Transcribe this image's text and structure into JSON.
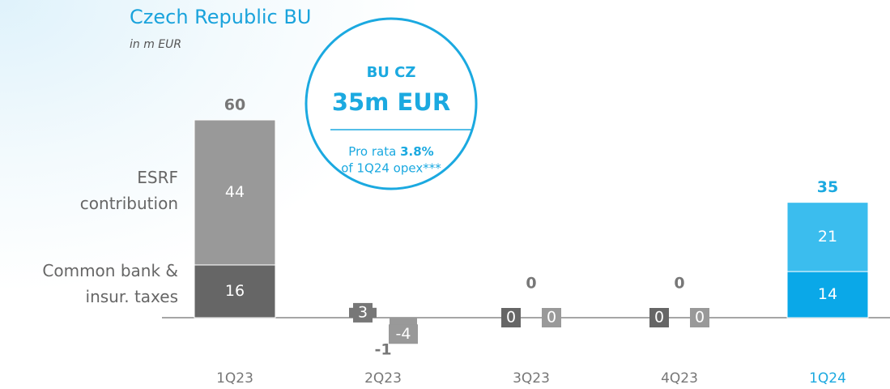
{
  "chart_data": {
    "type": "stacked_bar",
    "title": "Czech Republic BU",
    "subtitle": "in m EUR",
    "categories": [
      "1Q23",
      "2Q23",
      "3Q23",
      "4Q23",
      "1Q24"
    ],
    "category_colors": [
      "#777777",
      "#777777",
      "#777777",
      "#777777",
      "#1ba9e0"
    ],
    "series": [
      {
        "name": "Common bank & insur. taxes",
        "colors": [
          "#666666",
          "#777777",
          "#666666",
          "#666666",
          "#0aa8e8"
        ],
        "values": [
          16,
          3,
          0,
          0,
          14
        ]
      },
      {
        "name": "ESRF contribution",
        "colors": [
          "#999999",
          "#999999",
          "#999999",
          "#999999",
          "#3bbdee"
        ],
        "values": [
          44,
          -4,
          0,
          0,
          21
        ]
      }
    ],
    "totals": [
      60,
      -1,
      0,
      0,
      35
    ],
    "ylim": [
      -10,
      62
    ],
    "callout": {
      "title": "BU CZ",
      "value": "35m EUR",
      "text": [
        "Pro rata",
        "3.8%",
        "of 1Q24 opex***"
      ]
    }
  }
}
